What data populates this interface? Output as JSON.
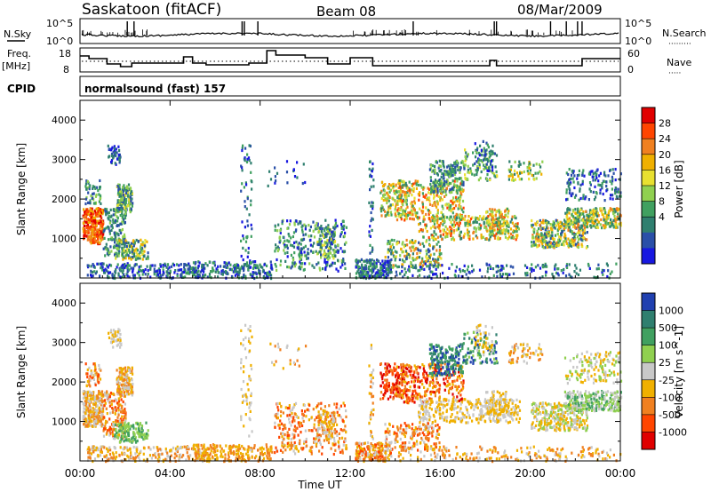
{
  "header": {
    "station": "Saskatoon (fitACF)",
    "beam": "Beam 08",
    "date": "08/Mar/2009"
  },
  "noise_panel": {
    "left_label": "N.Sky",
    "right_label": "N.Search",
    "right_legend": "·········",
    "left_ticks": [
      "10^5",
      "10^0"
    ],
    "right_ticks": [
      "10^5",
      "10^0"
    ]
  },
  "freq_panel": {
    "left_label_1": "Freq.",
    "left_label_2": "[MHz]",
    "left_ticks": [
      "18",
      "8"
    ],
    "right_label": "Nave",
    "right_legend": "·····",
    "right_ticks": [
      "60",
      "0"
    ]
  },
  "cpid_panel": {
    "label": "CPID",
    "text": "normalsound (fast) 157"
  },
  "range_panels": {
    "y_axis_label": "Slant Range [km]",
    "y_ticks": [
      "4000",
      "3000",
      "2000",
      "1000"
    ],
    "x_ticks": [
      "00:00",
      "04:00",
      "08:00",
      "12:00",
      "16:00",
      "20:00",
      "00:00"
    ],
    "x_axis_label": "Time UT"
  },
  "power_colorbar": {
    "label": "Power [dB]",
    "ticks": [
      "28",
      "24",
      "20",
      "16",
      "12",
      "8",
      "4"
    ],
    "colors": [
      "#e00000",
      "#ff4500",
      "#f08020",
      "#f0b000",
      "#e8e030",
      "#90d050",
      "#40a060",
      "#2f7f6f",
      "#2a4fa8",
      "#1818e0"
    ]
  },
  "velocity_colorbar": {
    "label": "Velocity [m s^-1]",
    "ticks": [
      "1000",
      "500",
      "100",
      "25",
      "-25",
      "-100",
      "-500",
      "-1000"
    ],
    "colors": [
      "#2040b0",
      "#2f7f6f",
      "#40a060",
      "#90d050",
      "#c8c8c8",
      "#f0b000",
      "#f08020",
      "#ff4500",
      "#e00000"
    ]
  },
  "chart_data": {
    "type": "heatmap",
    "x_range_hours": [
      0,
      24
    ],
    "y_range_km": [
      0,
      4500
    ],
    "panels": [
      "power",
      "velocity"
    ]
  }
}
